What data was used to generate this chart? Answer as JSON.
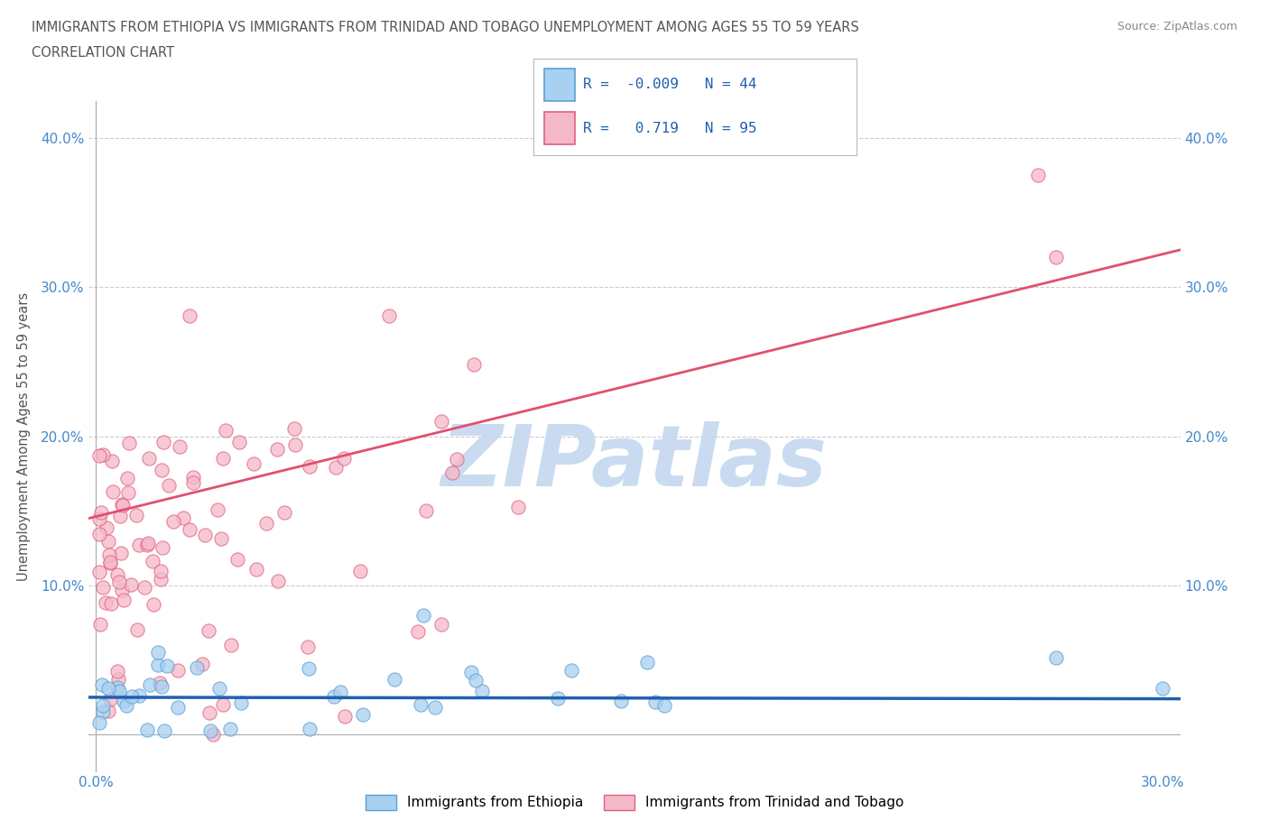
{
  "title_line1": "IMMIGRANTS FROM ETHIOPIA VS IMMIGRANTS FROM TRINIDAD AND TOBAGO UNEMPLOYMENT AMONG AGES 55 TO 59 YEARS",
  "title_line2": "CORRELATION CHART",
  "source": "Source: ZipAtlas.com",
  "ylabel": "Unemployment Among Ages 55 to 59 years",
  "xlim": [
    -0.002,
    0.305
  ],
  "ylim": [
    -0.025,
    0.425
  ],
  "xticks": [
    0.0,
    0.05,
    0.1,
    0.15,
    0.2,
    0.25,
    0.3
  ],
  "yticks": [
    0.0,
    0.1,
    0.2,
    0.3,
    0.4
  ],
  "xticklabels": [
    "0.0%",
    "",
    "",
    "",
    "",
    "",
    "30.0%"
  ],
  "yticklabels": [
    "",
    "10.0%",
    "20.0%",
    "30.0%",
    "40.0%"
  ],
  "ethiopia_R": -0.009,
  "ethiopia_N": 44,
  "trinidad_R": 0.719,
  "trinidad_N": 95,
  "ethiopia_fill": "#a8d0f0",
  "ethiopia_edge": "#5a9fd4",
  "trinidad_fill": "#f5b8c8",
  "trinidad_edge": "#e06080",
  "trendline_eth_color": "#2060b0",
  "trendline_tri_color": "#e05070",
  "watermark": "ZIPatlas",
  "watermark_color": "#c5d8f0",
  "bg_color": "#ffffff",
  "grid_color": "#cccccc",
  "title_color": "#555555",
  "tick_color": "#4488cc",
  "legend_text_color": "#2060b0",
  "source_color": "#888888"
}
